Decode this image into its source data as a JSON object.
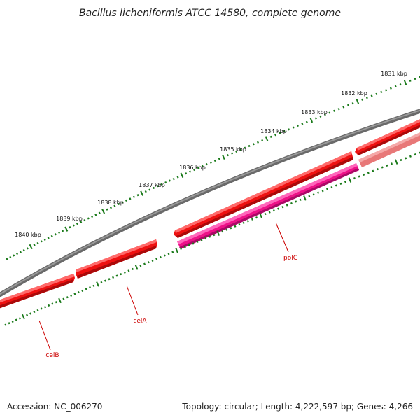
{
  "title": "Bacillus licheniformis ATCC 14580, complete genome",
  "footer": {
    "accession": "Accession: NC_006270",
    "summary": "Topology: circular; Length: 4,222,597 bp; Genes: 4,266"
  },
  "scale": {
    "tick_labels": [
      "1831 kbp",
      "1832 kbp",
      "1833 kbp",
      "1834 kbp",
      "1835 kbp",
      "1836 kbp",
      "1837 kbp",
      "1838 kbp",
      "1839 kbp",
      "1840 kbp"
    ],
    "tick_color": "#1a7a1a"
  },
  "colors": {
    "backbone": "#808080",
    "forward_gene": "#ee1111",
    "forward_gene_faded": "#e87878",
    "reverse_gene": "#ee1188",
    "label": "#cc0000"
  },
  "genes": [
    {
      "name": "celB",
      "label": "celB"
    },
    {
      "name": "celA",
      "label": "celA"
    },
    {
      "name": "polC",
      "label": "polC"
    }
  ]
}
